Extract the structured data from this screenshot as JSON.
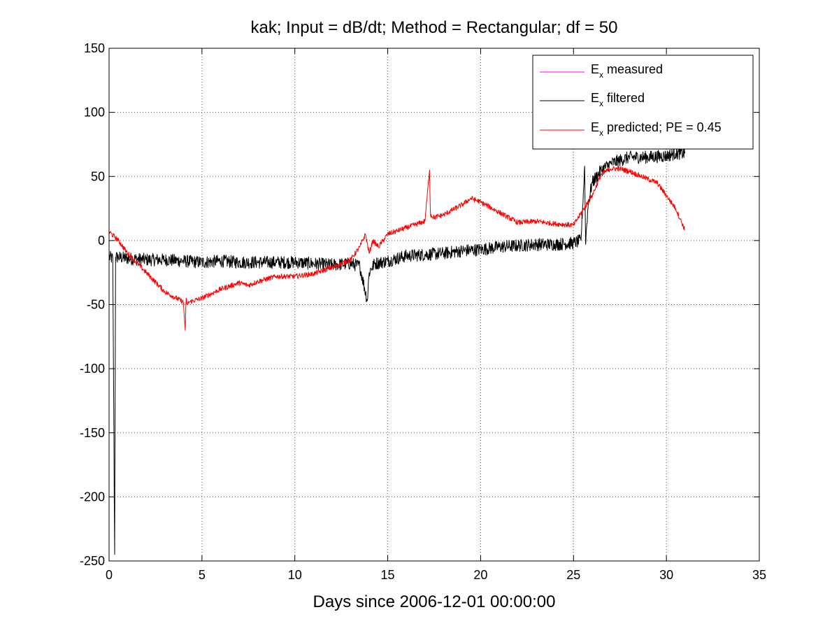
{
  "chart_data": {
    "type": "line",
    "title": "kak; Input = dB/dt; Method = Rectangular; df = 50",
    "xlabel": "Days since 2006-12-01 00:00:00",
    "ylabel": "",
    "xlim": [
      0,
      35
    ],
    "ylim": [
      -250,
      150
    ],
    "xticks": [
      0,
      5,
      10,
      15,
      20,
      25,
      30,
      35
    ],
    "yticks": [
      -250,
      -200,
      -150,
      -100,
      -50,
      0,
      50,
      100,
      150
    ],
    "xtick_labels": [
      "0",
      "5",
      "10",
      "15",
      "20",
      "25",
      "30",
      "35"
    ],
    "ytick_labels": [
      "-250",
      "-200",
      "-150",
      "-100",
      "-50",
      "0",
      "50",
      "100",
      "150"
    ],
    "grid": true,
    "legend_position": "top-right",
    "legend": [
      {
        "main": "E",
        "sub": "x",
        "rest": " measured",
        "color": "#ff00ff"
      },
      {
        "main": "E",
        "sub": "x",
        "rest": " filtered",
        "color": "#000000"
      },
      {
        "main": "E",
        "sub": "x",
        "rest": " predicted; PE = 0.45",
        "color": "#ff0000"
      }
    ],
    "series": [
      {
        "name": "Ex measured",
        "color": "#ff00ff",
        "x": [],
        "y": []
      },
      {
        "name": "Ex filtered",
        "color": "#000000",
        "noise_amplitude": 5,
        "x": [
          0,
          0.2,
          0.3,
          0.35,
          0.5,
          1,
          2,
          3,
          4,
          5,
          6,
          7,
          8,
          9,
          10,
          11,
          12,
          13,
          13.5,
          13.9,
          14.0,
          14.1,
          14.3,
          15,
          16,
          17,
          18,
          19,
          20,
          21,
          22,
          23,
          24,
          25,
          25.4,
          25.6,
          25.65,
          25.7,
          25.8,
          26,
          26.5,
          27,
          28,
          29,
          30,
          30.5,
          31
        ],
        "y": [
          -13,
          -14,
          -245,
          -13,
          -13,
          -14,
          -15,
          -15,
          -16,
          -17,
          -16,
          -17,
          -17,
          -17,
          -17,
          -18,
          -19,
          -18,
          -20,
          -47,
          -25,
          -22,
          -18,
          -16,
          -12,
          -11,
          -10,
          -8,
          -7,
          -5,
          -4,
          -3,
          -3,
          -2,
          0,
          58,
          -3,
          10,
          30,
          45,
          55,
          60,
          65,
          65,
          66,
          68,
          68
        ]
      },
      {
        "name": "Ex predicted; PE = 0.45",
        "color": "#ff0000",
        "noise_amplitude": 2,
        "x": [
          0,
          0.5,
          1,
          2,
          3,
          4,
          4.1,
          4.15,
          4.2,
          4.3,
          5,
          6,
          7,
          7.5,
          8,
          9,
          10,
          11,
          12,
          13,
          13.5,
          13.8,
          14,
          14.2,
          14.5,
          15,
          16,
          17,
          17.25,
          17.3,
          17.5,
          18,
          19,
          19.5,
          20,
          21,
          22,
          23,
          24,
          25,
          26,
          26.5,
          27,
          27.5,
          28,
          29,
          29.5,
          30,
          30.5,
          31
        ],
        "y": [
          7,
          0,
          -10,
          -25,
          -40,
          -48,
          -70,
          -45,
          -50,
          -48,
          -45,
          -38,
          -33,
          -35,
          -32,
          -28,
          -28,
          -26,
          -21,
          -15,
          -5,
          5,
          -10,
          0,
          -5,
          5,
          10,
          15,
          55,
          20,
          18,
          20,
          28,
          33,
          30,
          22,
          14,
          15,
          13,
          12,
          35,
          52,
          56,
          56,
          54,
          48,
          45,
          35,
          25,
          8
        ]
      }
    ]
  }
}
